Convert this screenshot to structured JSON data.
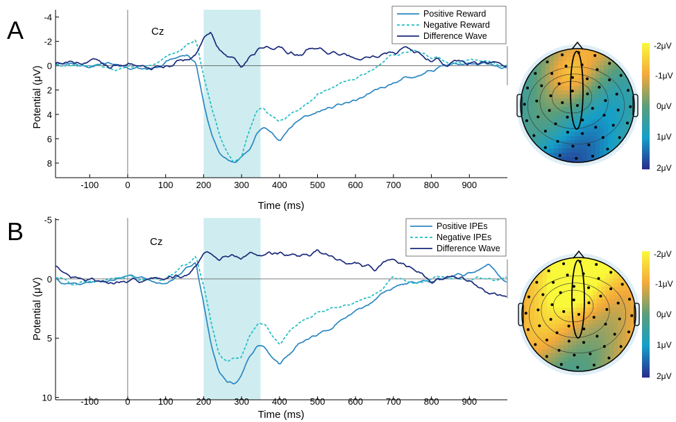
{
  "colors": {
    "positive": "#2b86c2",
    "negative": "#22bcc4",
    "difference": "#1a2a7a",
    "shade": "#cfedf0"
  },
  "chart_data": [
    {
      "type": "line",
      "panel_letter": "A",
      "channel_label": "Cz",
      "xlabel": "Time (ms)",
      "ylabel": "Potential (μV)",
      "xlim": [
        -190,
        1000
      ],
      "ylim": [
        -4.6,
        9.2
      ],
      "y_inverted": true,
      "x_ticks": [
        "-100",
        "0",
        "100",
        "200",
        "300",
        "400",
        "500",
        "600",
        "700",
        "800",
        "900"
      ],
      "x_tick_values": [
        -100,
        0,
        100,
        200,
        300,
        400,
        500,
        600,
        700,
        800,
        900
      ],
      "y_ticks": [
        "-4",
        "-2",
        "0",
        "2",
        "4",
        "6",
        "8"
      ],
      "y_tick_values": [
        -4,
        -2,
        0,
        2,
        4,
        6,
        8
      ],
      "shaded_window": [
        200,
        350
      ],
      "legend_position": "top-right",
      "x": [
        -190,
        -150,
        -100,
        -50,
        0,
        50,
        100,
        140,
        160,
        180,
        200,
        220,
        240,
        260,
        280,
        300,
        320,
        340,
        360,
        380,
        400,
        450,
        500,
        550,
        600,
        650,
        700,
        750,
        800,
        850,
        900,
        950,
        1000
      ],
      "series": [
        {
          "name": "Positive Reward",
          "style": "solid",
          "color_key": "positive",
          "values": [
            0,
            -0.1,
            0.2,
            -0.2,
            0,
            0.2,
            -0.3,
            -0.6,
            -0.9,
            -0.4,
            3.0,
            5.5,
            7.0,
            7.7,
            7.9,
            7.7,
            7.0,
            5.5,
            5.1,
            5.6,
            6.2,
            4.4,
            3.8,
            3.2,
            2.8,
            2.0,
            1.4,
            0.8,
            0.3,
            0,
            -0.2,
            0,
            0.1
          ]
        },
        {
          "name": "Negative Reward",
          "style": "dashed",
          "color_key": "negative",
          "values": [
            0,
            0.1,
            -0.2,
            0.2,
            0,
            -0.1,
            -0.4,
            -1.1,
            -1.7,
            -2.0,
            1.0,
            3.5,
            5.5,
            7.0,
            7.8,
            7.5,
            5.5,
            3.8,
            3.5,
            4.3,
            4.6,
            3.5,
            2.3,
            1.6,
            1.0,
            0.3,
            -0.8,
            -1.5,
            -0.7,
            -0.2,
            -0.5,
            -0.3,
            0
          ]
        },
        {
          "name": "Difference Wave",
          "style": "solid",
          "color_key": "difference",
          "values": [
            0,
            -0.3,
            -0.5,
            0,
            -0.2,
            0,
            -0.1,
            -0.4,
            -0.6,
            -1.0,
            -2.3,
            -2.7,
            -1.6,
            -0.7,
            -0.3,
            0.3,
            -0.6,
            -1.3,
            -1.3,
            -1.2,
            -1.3,
            -0.8,
            -1.6,
            -1.2,
            -0.8,
            -0.6,
            -1.3,
            -1.5,
            -0.5,
            -0.3,
            -0.2,
            -0.4,
            -0.1
          ]
        }
      ]
    },
    {
      "type": "line",
      "panel_letter": "B",
      "channel_label": "Cz",
      "xlabel": "Time (ms)",
      "ylabel": "Potential (μV)",
      "xlim": [
        -190,
        1000
      ],
      "ylim": [
        -5.15,
        10.2
      ],
      "y_inverted": true,
      "x_ticks": [
        "-100",
        "0",
        "100",
        "200",
        "300",
        "400",
        "500",
        "600",
        "700",
        "800",
        "900"
      ],
      "x_tick_values": [
        -100,
        0,
        100,
        200,
        300,
        400,
        500,
        600,
        700,
        800,
        900
      ],
      "y_ticks": [
        "-5",
        "0",
        "5",
        "10"
      ],
      "y_tick_values": [
        -5,
        0,
        5,
        10
      ],
      "shaded_window": [
        200,
        350
      ],
      "legend_position": "top-right",
      "x": [
        -190,
        -150,
        -100,
        -50,
        0,
        50,
        100,
        140,
        160,
        180,
        200,
        220,
        240,
        260,
        280,
        300,
        320,
        340,
        360,
        380,
        400,
        450,
        500,
        550,
        600,
        650,
        700,
        750,
        800,
        850,
        900,
        950,
        1000
      ],
      "series": [
        {
          "name": "Positive IPEs",
          "style": "solid",
          "color_key": "positive",
          "values": [
            0,
            0.5,
            0.3,
            0.2,
            -0.3,
            0.2,
            0.5,
            -0.5,
            -1.0,
            -1.6,
            2.0,
            5.5,
            7.8,
            8.6,
            8.8,
            8.2,
            6.5,
            5.6,
            5.8,
            6.6,
            7.3,
            5.6,
            4.8,
            3.6,
            2.8,
            1.8,
            0.8,
            0.3,
            0.1,
            -0.2,
            -0.5,
            -1.0,
            0.3
          ]
        },
        {
          "name": "Negative IPEs",
          "style": "dashed",
          "color_key": "negative",
          "values": [
            0,
            0.3,
            0.2,
            0.1,
            -0.2,
            -0.1,
            0.3,
            -0.8,
            -1.3,
            -1.9,
            0.5,
            3.8,
            6.2,
            6.8,
            6.8,
            6.5,
            4.8,
            3.7,
            3.8,
            4.7,
            5.4,
            3.6,
            2.8,
            2.3,
            1.9,
            1.3,
            -0.3,
            0.5,
            0.1,
            0,
            0.1,
            -0.1,
            0
          ]
        },
        {
          "name": "Difference Wave",
          "style": "solid",
          "color_key": "difference",
          "values": [
            -1.0,
            0.1,
            -0.2,
            0.3,
            0.2,
            0.1,
            -0.1,
            -0.3,
            -0.6,
            -1.3,
            -2.0,
            -2.1,
            -1.9,
            -2.1,
            -2.0,
            -1.8,
            -2.0,
            -2.4,
            -2.1,
            -1.9,
            -2.1,
            -2.0,
            -2.4,
            -1.6,
            -1.4,
            -1.0,
            -1.8,
            -0.8,
            0.2,
            -0.2,
            0.3,
            0.9,
            1.5
          ]
        }
      ]
    }
  ],
  "topomaps": [
    {
      "panel_letter": "A",
      "colorbar_ticks": [
        "-2μV",
        "-1μV",
        "0μV",
        "1μV",
        "2μV"
      ],
      "colorbar_range": [
        -2,
        2
      ],
      "mean_level": 0.4
    },
    {
      "panel_letter": "B",
      "colorbar_ticks": [
        "-2μV",
        "-1μV",
        "0μV",
        "1μV",
        "2μV"
      ],
      "colorbar_range": [
        -2,
        2
      ],
      "mean_level": -1.1
    }
  ]
}
